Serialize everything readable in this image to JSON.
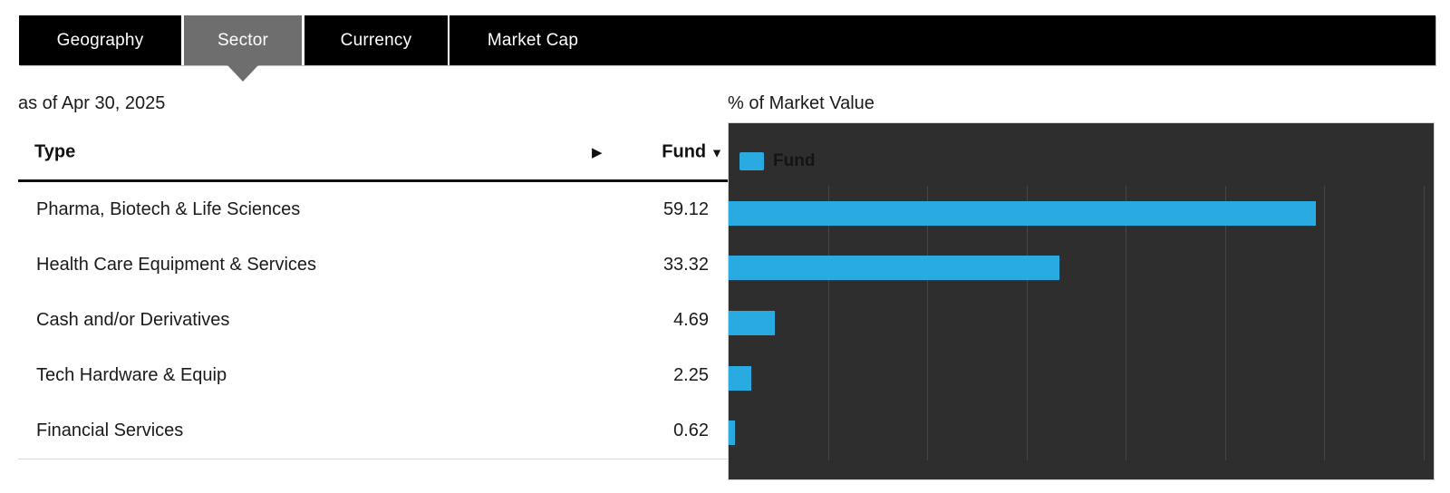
{
  "tab_bar": {
    "tabs": [
      {
        "label": "Geography",
        "selected": false
      },
      {
        "label": "Sector",
        "selected": true
      },
      {
        "label": "Currency",
        "selected": false
      },
      {
        "label": "Market Cap",
        "selected": false
      }
    ]
  },
  "as_of_label": "as of Apr 30, 2025",
  "holdings_table": {
    "type_header": "Type",
    "fund_header": "Fund",
    "sort_desc_icon": "▼",
    "scroll_right_icon": "▶",
    "rows": [
      {
        "type": "Pharma, Biotech & Life Sciences",
        "fund": "59.12"
      },
      {
        "type": "Health Care Equipment & Services",
        "fund": "33.32"
      },
      {
        "type": "Cash and/or Derivatives",
        "fund": "4.69"
      },
      {
        "type": "Tech Hardware & Equip",
        "fund": "2.25"
      },
      {
        "type": "Financial Services",
        "fund": "0.62"
      }
    ]
  },
  "chart_data": {
    "type": "bar",
    "orientation": "horizontal",
    "title": "% of Market Value",
    "legend": {
      "label": "Fund",
      "position": "top-left"
    },
    "categories": [
      "Pharma, Biotech & Life Sciences",
      "Health Care Equipment & Services",
      "Cash and/or Derivatives",
      "Tech Hardware & Equip",
      "Financial Services"
    ],
    "values": [
      59.12,
      33.32,
      4.69,
      2.25,
      0.62
    ],
    "xlim": [
      0,
      71
    ],
    "gridline_step": 10,
    "grid": true,
    "bar_color": "#29abe2",
    "background_color": "#2e2e2e",
    "gridline_color": "#454545"
  },
  "colors": {
    "tab_bar_bg": "#000000",
    "tab_selected_bg": "#6e6e6e",
    "accent": "#29abe2",
    "text": "#1a1a1a"
  }
}
